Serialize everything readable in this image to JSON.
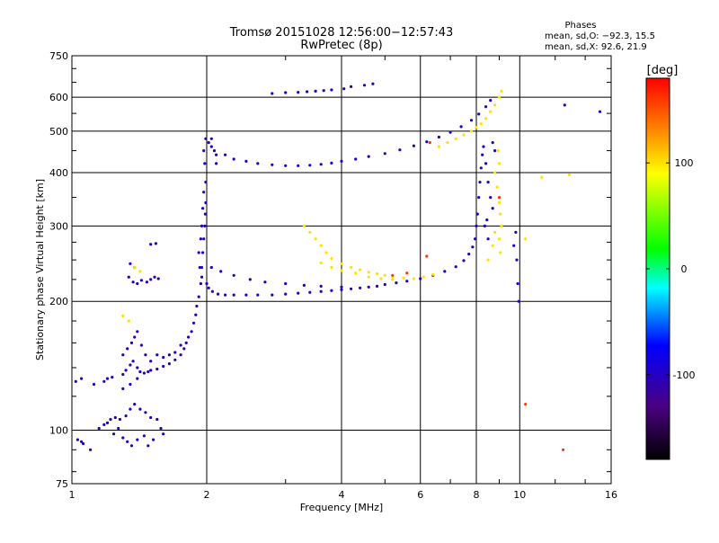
{
  "chart_data": {
    "type": "scatter",
    "title": "Tromsø 20151028 12:56:00−12:57:43",
    "subtitle": "RwPretec (8p)",
    "xlabel": "Frequency [MHz]",
    "ylabel": "Stationary phase Virtual Height [km]",
    "x_scale": "log",
    "y_scale": "log",
    "xlim": [
      1,
      16
    ],
    "ylim": [
      75,
      750
    ],
    "x_ticks": [
      1,
      2,
      4,
      6,
      8,
      10,
      16
    ],
    "y_ticks": [
      75,
      100,
      200,
      300,
      400,
      500,
      600,
      750
    ],
    "grid": true,
    "phase_stats": {
      "title": "Phases",
      "line_o": "mean, sd,O: −92.3, 15.5",
      "line_x": "mean, sd,X: 92.6, 21.9"
    },
    "colorbar": {
      "label": "[deg]",
      "range": [
        -180,
        180
      ],
      "ticks": [
        100,
        0,
        -100
      ],
      "colors": [
        "#000000",
        "#4b0082",
        "#0000ff",
        "#00ffff",
        "#00ff00",
        "#ffff00",
        "#ff8000",
        "#ff0000"
      ]
    },
    "series": [
      {
        "mode": "O",
        "phase": -100,
        "points": [
          [
            1.03,
            95
          ],
          [
            1.05,
            94
          ],
          [
            1.06,
            93
          ],
          [
            1.1,
            90
          ],
          [
            1.15,
            101
          ],
          [
            1.18,
            103
          ],
          [
            1.2,
            104
          ],
          [
            1.22,
            106
          ],
          [
            1.25,
            107
          ],
          [
            1.28,
            106
          ],
          [
            1.32,
            108
          ],
          [
            1.35,
            112
          ],
          [
            1.38,
            115
          ],
          [
            1.42,
            112
          ],
          [
            1.46,
            110
          ],
          [
            1.5,
            107
          ],
          [
            1.55,
            106
          ],
          [
            1.58,
            101
          ],
          [
            1.6,
            98
          ],
          [
            1.3,
            96
          ],
          [
            1.33,
            94
          ],
          [
            1.36,
            92
          ],
          [
            1.4,
            95
          ],
          [
            1.45,
            97
          ],
          [
            1.48,
            92
          ],
          [
            1.52,
            95
          ],
          [
            1.27,
            101
          ],
          [
            1.24,
            98
          ],
          [
            1.3,
            135
          ],
          [
            1.32,
            138
          ],
          [
            1.35,
            142
          ],
          [
            1.37,
            145
          ],
          [
            1.4,
            140
          ],
          [
            1.42,
            137
          ],
          [
            1.45,
            136
          ],
          [
            1.48,
            137
          ],
          [
            1.5,
            138
          ],
          [
            1.55,
            139
          ],
          [
            1.6,
            141
          ],
          [
            1.65,
            143
          ],
          [
            1.7,
            146
          ],
          [
            1.75,
            150
          ],
          [
            1.78,
            155
          ],
          [
            1.8,
            160
          ],
          [
            1.82,
            165
          ],
          [
            1.85,
            170
          ],
          [
            1.87,
            178
          ],
          [
            1.89,
            186
          ],
          [
            1.9,
            195
          ],
          [
            1.92,
            205
          ],
          [
            1.94,
            220
          ],
          [
            1.95,
            240
          ],
          [
            1.96,
            260
          ],
          [
            1.97,
            280
          ],
          [
            1.98,
            300
          ],
          [
            1.985,
            320
          ],
          [
            1.99,
            340
          ],
          [
            1.3,
            150
          ],
          [
            1.33,
            155
          ],
          [
            1.36,
            160
          ],
          [
            1.38,
            165
          ],
          [
            1.4,
            170
          ],
          [
            1.43,
            158
          ],
          [
            1.46,
            150
          ],
          [
            1.5,
            145
          ],
          [
            1.55,
            150
          ],
          [
            1.6,
            148
          ],
          [
            1.65,
            150
          ],
          [
            1.7,
            152
          ],
          [
            1.75,
            158
          ],
          [
            1.3,
            125
          ],
          [
            1.35,
            128
          ],
          [
            1.4,
            132
          ],
          [
            1.02,
            130
          ],
          [
            1.05,
            132
          ],
          [
            1.12,
            128
          ],
          [
            1.18,
            130
          ],
          [
            1.2,
            132
          ],
          [
            1.23,
            133
          ],
          [
            1.34,
            228
          ],
          [
            1.37,
            222
          ],
          [
            1.4,
            220
          ],
          [
            1.43,
            224
          ],
          [
            1.47,
            222
          ],
          [
            1.5,
            225
          ],
          [
            1.53,
            228
          ],
          [
            1.56,
            226
          ],
          [
            1.5,
            272
          ],
          [
            1.54,
            273
          ],
          [
            1.35,
            245
          ],
          [
            1.38,
            240
          ],
          [
            1.92,
            260
          ],
          [
            1.94,
            280
          ],
          [
            1.95,
            300
          ],
          [
            1.96,
            330
          ],
          [
            1.97,
            360
          ],
          [
            1.93,
            240
          ],
          [
            1.95,
            228
          ],
          [
            1.99,
            480
          ],
          [
            2.02,
            470
          ],
          [
            2.05,
            460
          ],
          [
            2.08,
            450
          ],
          [
            2.1,
            440
          ],
          [
            2.1,
            420
          ],
          [
            2.05,
            480
          ],
          [
            1.97,
            450
          ],
          [
            1.98,
            420
          ],
          [
            1.99,
            380
          ],
          [
            2.0,
            220
          ],
          [
            2.02,
            215
          ],
          [
            2.06,
            211
          ],
          [
            2.12,
            208
          ],
          [
            2.2,
            207
          ],
          [
            2.3,
            207
          ],
          [
            2.45,
            207
          ],
          [
            2.6,
            207
          ],
          [
            2.8,
            207
          ],
          [
            3.0,
            208
          ],
          [
            3.2,
            209
          ],
          [
            3.4,
            210
          ],
          [
            3.6,
            211
          ],
          [
            3.8,
            212
          ],
          [
            4.0,
            213
          ],
          [
            4.2,
            214
          ],
          [
            4.4,
            215
          ],
          [
            4.6,
            216
          ],
          [
            4.8,
            217
          ],
          [
            5.0,
            219
          ],
          [
            5.3,
            221
          ],
          [
            5.6,
            223
          ],
          [
            6.0,
            226
          ],
          [
            6.4,
            230
          ],
          [
            6.8,
            235
          ],
          [
            7.2,
            241
          ],
          [
            7.5,
            249
          ],
          [
            7.7,
            258
          ],
          [
            7.85,
            268
          ],
          [
            7.95,
            280
          ],
          [
            8.0,
            300
          ],
          [
            8.05,
            320
          ],
          [
            8.1,
            350
          ],
          [
            8.15,
            380
          ],
          [
            8.2,
            410
          ],
          [
            8.25,
            440
          ],
          [
            2.05,
            240
          ],
          [
            2.15,
            235
          ],
          [
            2.3,
            230
          ],
          [
            2.5,
            225
          ],
          [
            2.7,
            222
          ],
          [
            3.0,
            220
          ],
          [
            3.3,
            218
          ],
          [
            3.6,
            217
          ],
          [
            4.0,
            216
          ],
          [
            2.2,
            440
          ],
          [
            2.3,
            430
          ],
          [
            2.45,
            425
          ],
          [
            2.6,
            420
          ],
          [
            2.8,
            417
          ],
          [
            3.0,
            415
          ],
          [
            3.2,
            415
          ],
          [
            3.4,
            416
          ],
          [
            3.6,
            418
          ],
          [
            3.8,
            421
          ],
          [
            4.0,
            425
          ],
          [
            4.3,
            430
          ],
          [
            4.6,
            436
          ],
          [
            5.0,
            443
          ],
          [
            5.4,
            452
          ],
          [
            5.8,
            462
          ],
          [
            6.2,
            472
          ],
          [
            6.6,
            484
          ],
          [
            7.0,
            497
          ],
          [
            7.4,
            512
          ],
          [
            7.8,
            530
          ],
          [
            8.1,
            548
          ],
          [
            8.4,
            570
          ],
          [
            8.6,
            590
          ],
          [
            2.8,
            612
          ],
          [
            3.0,
            615
          ],
          [
            3.2,
            616
          ],
          [
            3.35,
            618
          ],
          [
            3.5,
            620
          ],
          [
            3.65,
            622
          ],
          [
            3.8,
            624
          ],
          [
            4.05,
            628
          ],
          [
            4.2,
            635
          ],
          [
            4.5,
            640
          ],
          [
            4.7,
            645
          ],
          [
            8.3,
            460
          ],
          [
            8.4,
            420
          ],
          [
            8.5,
            380
          ],
          [
            8.6,
            350
          ],
          [
            8.7,
            330
          ],
          [
            8.35,
            300
          ],
          [
            8.45,
            310
          ],
          [
            8.5,
            280
          ],
          [
            8.7,
            470
          ],
          [
            8.8,
            450
          ],
          [
            9.8,
            290
          ],
          [
            9.85,
            250
          ],
          [
            9.9,
            220
          ],
          [
            9.95,
            200
          ],
          [
            9.7,
            270
          ],
          [
            12.6,
            575
          ],
          [
            15.1,
            555
          ]
        ]
      },
      {
        "mode": "X",
        "phase": 100,
        "points": [
          [
            3.3,
            300
          ],
          [
            3.4,
            290
          ],
          [
            3.5,
            280
          ],
          [
            3.6,
            270
          ],
          [
            3.7,
            260
          ],
          [
            3.8,
            252
          ],
          [
            4.0,
            245
          ],
          [
            4.2,
            240
          ],
          [
            4.4,
            237
          ],
          [
            4.6,
            234
          ],
          [
            4.8,
            232
          ],
          [
            5.0,
            230
          ],
          [
            5.2,
            228
          ],
          [
            5.5,
            227
          ],
          [
            5.8,
            226
          ],
          [
            6.1,
            228
          ],
          [
            6.4,
            231
          ],
          [
            3.6,
            246
          ],
          [
            3.8,
            240
          ],
          [
            4.0,
            236
          ],
          [
            4.3,
            233
          ],
          [
            4.6,
            228
          ],
          [
            4.9,
            226
          ],
          [
            5.2,
            225
          ],
          [
            1.38,
            240
          ],
          [
            1.42,
            235
          ],
          [
            1.3,
            185
          ],
          [
            1.34,
            180
          ],
          [
            6.6,
            460
          ],
          [
            6.9,
            470
          ],
          [
            7.2,
            480
          ],
          [
            7.5,
            490
          ],
          [
            7.8,
            500
          ],
          [
            8.0,
            510
          ],
          [
            8.2,
            520
          ],
          [
            8.4,
            535
          ],
          [
            8.6,
            555
          ],
          [
            8.8,
            575
          ],
          [
            9.0,
            600
          ],
          [
            9.1,
            620
          ],
          [
            8.8,
            400
          ],
          [
            8.9,
            370
          ],
          [
            9.0,
            340
          ],
          [
            9.05,
            320
          ],
          [
            9.1,
            300
          ],
          [
            9.0,
            420
          ],
          [
            8.95,
            450
          ],
          [
            9.0,
            280
          ],
          [
            9.05,
            260
          ],
          [
            8.5,
            250
          ],
          [
            8.7,
            270
          ],
          [
            8.8,
            290
          ],
          [
            11.2,
            390
          ],
          [
            12.9,
            395
          ],
          [
            10.3,
            280
          ]
        ]
      },
      {
        "mode": "X",
        "phase": 160,
        "points": [
          [
            5.2,
            230
          ],
          [
            5.6,
            233
          ],
          [
            6.2,
            255
          ],
          [
            6.3,
            470
          ],
          [
            9.0,
            350
          ],
          [
            10.3,
            115
          ],
          [
            12.5,
            90
          ]
        ]
      }
    ]
  }
}
